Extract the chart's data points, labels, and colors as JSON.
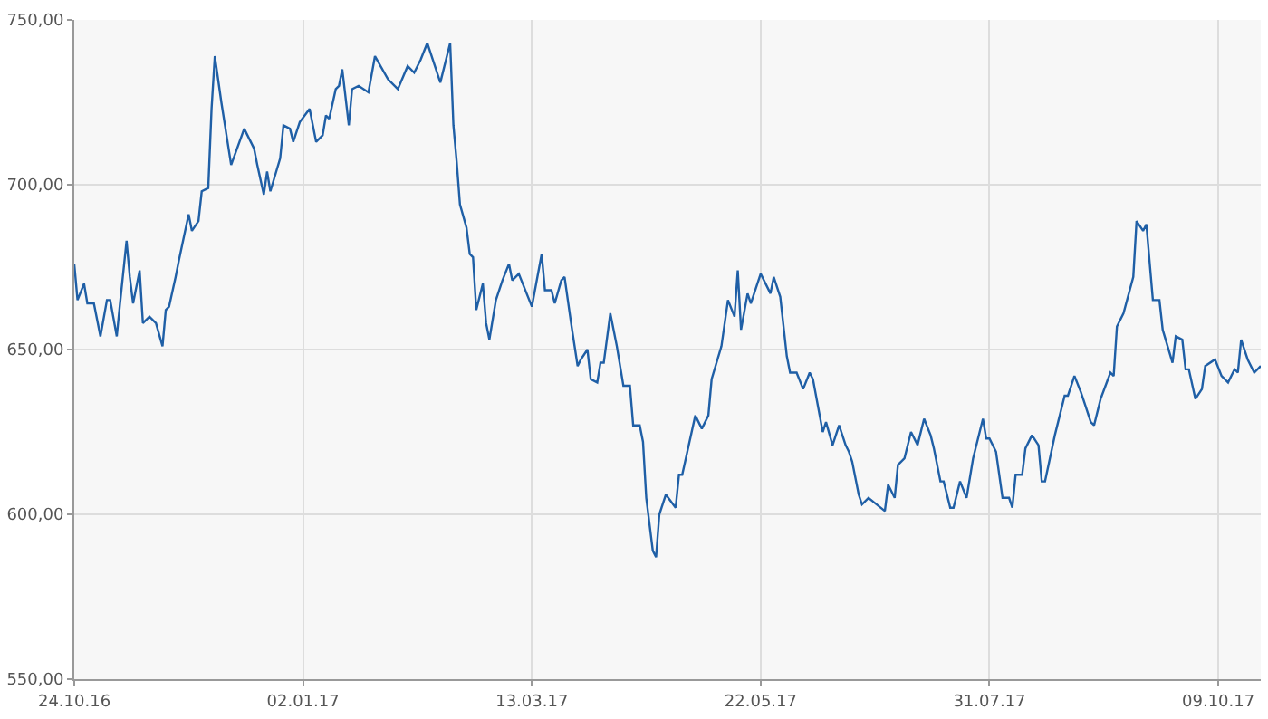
{
  "chart_data": {
    "type": "line",
    "x": [
      "2016-10-24",
      "2016-10-25",
      "2016-10-27",
      "2016-10-28",
      "2016-10-30",
      "2016-11-01",
      "2016-11-03",
      "2016-11-04",
      "2016-11-06",
      "2016-11-07",
      "2016-11-09",
      "2016-11-10",
      "2016-11-11",
      "2016-11-13",
      "2016-11-14",
      "2016-11-16",
      "2016-11-18",
      "2016-11-20",
      "2016-11-21",
      "2016-11-22",
      "2016-11-24",
      "2016-11-25",
      "2016-11-28",
      "2016-11-29",
      "2016-12-01",
      "2016-12-02",
      "2016-12-04",
      "2016-12-05",
      "2016-12-06",
      "2016-12-08",
      "2016-12-11",
      "2016-12-15",
      "2016-12-18",
      "2016-12-19",
      "2016-12-21",
      "2016-12-22",
      "2016-12-23",
      "2016-12-26",
      "2016-12-27",
      "2016-12-29",
      "2016-12-30",
      "2017-01-01",
      "2017-01-04",
      "2017-01-06",
      "2017-01-08",
      "2017-01-09",
      "2017-01-10",
      "2017-01-12",
      "2017-01-13",
      "2017-01-14",
      "2017-01-16",
      "2017-01-17",
      "2017-01-19",
      "2017-01-22",
      "2017-01-24",
      "2017-01-28",
      "2017-01-31",
      "2017-02-03",
      "2017-02-05",
      "2017-02-07",
      "2017-02-09",
      "2017-02-13",
      "2017-02-16",
      "2017-02-17",
      "2017-02-18",
      "2017-02-19",
      "2017-02-21",
      "2017-02-22",
      "2017-02-23",
      "2017-02-24",
      "2017-02-26",
      "2017-02-27",
      "2017-02-28",
      "2017-03-02",
      "2017-03-04",
      "2017-03-06",
      "2017-03-07",
      "2017-03-09",
      "2017-03-13",
      "2017-03-16",
      "2017-03-17",
      "2017-03-19",
      "2017-03-20",
      "2017-03-22",
      "2017-03-23",
      "2017-03-25",
      "2017-03-27",
      "2017-03-28",
      "2017-03-30",
      "2017-03-31",
      "2017-04-02",
      "2017-04-03",
      "2017-04-04",
      "2017-04-06",
      "2017-04-08",
      "2017-04-10",
      "2017-04-12",
      "2017-04-13",
      "2017-04-15",
      "2017-04-16",
      "2017-04-17",
      "2017-04-19",
      "2017-04-20",
      "2017-04-21",
      "2017-04-23",
      "2017-04-26",
      "2017-04-27",
      "2017-04-28",
      "2017-04-30",
      "2017-05-02",
      "2017-05-04",
      "2017-05-06",
      "2017-05-07",
      "2017-05-10",
      "2017-05-12",
      "2017-05-14",
      "2017-05-15",
      "2017-05-16",
      "2017-05-18",
      "2017-05-19",
      "2017-05-20",
      "2017-05-22",
      "2017-05-25",
      "2017-05-26",
      "2017-05-28",
      "2017-05-30",
      "2017-05-31",
      "2017-06-02",
      "2017-06-04",
      "2017-06-06",
      "2017-06-07",
      "2017-06-10",
      "2017-06-11",
      "2017-06-13",
      "2017-06-15",
      "2017-06-17",
      "2017-06-18",
      "2017-06-19",
      "2017-06-21",
      "2017-06-22",
      "2017-06-24",
      "2017-06-29",
      "2017-06-30",
      "2017-07-02",
      "2017-07-03",
      "2017-07-05",
      "2017-07-07",
      "2017-07-09",
      "2017-07-11",
      "2017-07-13",
      "2017-07-14",
      "2017-07-16",
      "2017-07-17",
      "2017-07-19",
      "2017-07-20",
      "2017-07-22",
      "2017-07-24",
      "2017-07-26",
      "2017-07-27",
      "2017-07-29",
      "2017-07-30",
      "2017-07-31",
      "2017-08-02",
      "2017-08-04",
      "2017-08-06",
      "2017-08-07",
      "2017-08-08",
      "2017-08-10",
      "2017-08-11",
      "2017-08-13",
      "2017-08-15",
      "2017-08-16",
      "2017-08-17",
      "2017-08-20",
      "2017-08-23",
      "2017-08-24",
      "2017-08-26",
      "2017-08-28",
      "2017-08-29",
      "2017-08-31",
      "2017-09-01",
      "2017-09-03",
      "2017-09-06",
      "2017-09-07",
      "2017-09-08",
      "2017-09-10",
      "2017-09-13",
      "2017-09-14",
      "2017-09-16",
      "2017-09-17",
      "2017-09-19",
      "2017-09-21",
      "2017-09-22",
      "2017-09-25",
      "2017-09-26",
      "2017-09-28",
      "2017-09-29",
      "2017-09-30",
      "2017-10-02",
      "2017-10-04",
      "2017-10-05",
      "2017-10-08",
      "2017-10-10",
      "2017-10-12",
      "2017-10-14",
      "2017-10-15",
      "2017-10-16",
      "2017-10-18",
      "2017-10-20",
      "2017-10-22"
    ],
    "series": [
      {
        "color": "#1f5fa6",
        "values": [
          676,
          665,
          670,
          664,
          664,
          654,
          665,
          665,
          654,
          664,
          683,
          672,
          664,
          674,
          658,
          660,
          658,
          651,
          662,
          663,
          672,
          677,
          691,
          686,
          689,
          698,
          699,
          723,
          739,
          725,
          706,
          717,
          711,
          706,
          697,
          704,
          698,
          708,
          718,
          717,
          713,
          719,
          723,
          713,
          715,
          721,
          720,
          729,
          730,
          735,
          718,
          729,
          730,
          728,
          739,
          732,
          729,
          736,
          734,
          738,
          743,
          731,
          743,
          718,
          707,
          694,
          687,
          679,
          678,
          662,
          670,
          658,
          653,
          665,
          671,
          676,
          671,
          673,
          663,
          679,
          668,
          668,
          664,
          671,
          672,
          658,
          645,
          647,
          650,
          641,
          640,
          646,
          646,
          661,
          651,
          639,
          639,
          627,
          627,
          622,
          605,
          589,
          587,
          600,
          606,
          602,
          612,
          612,
          621,
          630,
          626,
          630,
          641,
          651,
          665,
          660,
          674,
          656,
          667,
          664,
          667,
          673,
          667,
          672,
          666,
          648,
          643,
          643,
          638,
          643,
          641,
          625,
          628,
          621,
          627,
          621,
          619,
          616,
          606,
          603,
          605,
          601,
          609,
          605,
          615,
          617,
          625,
          621,
          629,
          624,
          620,
          610,
          610,
          602,
          602,
          610,
          605,
          617,
          621,
          629,
          623,
          623,
          619,
          605,
          605,
          602,
          612,
          612,
          620,
          624,
          621,
          610,
          610,
          624,
          636,
          636,
          642,
          637,
          634,
          628,
          627,
          635,
          643,
          642,
          657,
          661,
          672,
          689,
          686,
          688,
          665,
          665,
          656,
          646,
          654,
          653,
          644,
          644,
          635,
          638,
          645,
          647,
          642,
          640,
          644,
          643,
          653,
          647,
          643,
          645
        ]
      }
    ],
    "xlim": [
      "2016-10-24",
      "2017-10-22"
    ],
    "xticks": [
      {
        "value": "2016-10-24",
        "label": "24.10.16"
      },
      {
        "value": "2017-01-02",
        "label": "02.01.17"
      },
      {
        "value": "2017-03-13",
        "label": "13.03.17"
      },
      {
        "value": "2017-05-22",
        "label": "22.05.17"
      },
      {
        "value": "2017-07-31",
        "label": "31.07.17"
      },
      {
        "value": "2017-10-09",
        "label": "09.10.17"
      }
    ],
    "ylim": [
      550,
      750
    ],
    "yticks": [
      {
        "value": 550,
        "label": "550,00"
      },
      {
        "value": 600,
        "label": "600,00"
      },
      {
        "value": 650,
        "label": "650,00"
      },
      {
        "value": 700,
        "label": "700,00"
      },
      {
        "value": 750,
        "label": "750,00"
      }
    ],
    "grid": true,
    "marker": "none",
    "line_style": "solid"
  }
}
